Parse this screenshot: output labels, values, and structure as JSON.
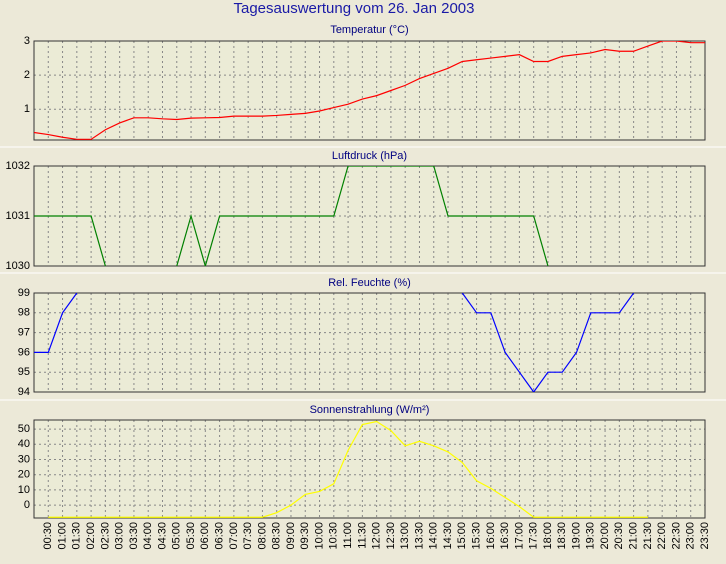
{
  "title": "Tagesauswertung vom 26. Jan 2003",
  "chart_data": [
    {
      "type": "line",
      "title": "Temperatur (°C)",
      "color": "#ff0000",
      "grid": true,
      "ylim": [
        0.1,
        3
      ],
      "yticks": [
        1,
        2,
        3
      ],
      "values": [
        0.32,
        0.26,
        0.18,
        0.12,
        0.12,
        0.4,
        0.6,
        0.75,
        0.75,
        0.72,
        0.7,
        0.74,
        0.75,
        0.76,
        0.8,
        0.8,
        0.8,
        0.82,
        0.85,
        0.88,
        0.95,
        1.05,
        1.15,
        1.3,
        1.4,
        1.55,
        1.7,
        1.9,
        2.05,
        2.2,
        2.4,
        2.45,
        2.5,
        2.55,
        2.6,
        2.4,
        2.4,
        2.55,
        2.6,
        2.65,
        2.75,
        2.7,
        2.7,
        2.85,
        3.0,
        3.0,
        2.95,
        2.95
      ]
    },
    {
      "type": "line",
      "title": "Luftdruck (hPa)",
      "color": "#008000",
      "grid": true,
      "ylim": [
        1030,
        1032
      ],
      "yticks": [
        1030,
        1031,
        1032
      ],
      "values": [
        1031,
        1031,
        1031,
        1031,
        1031,
        1030,
        null,
        null,
        null,
        null,
        1030,
        1031,
        1030,
        1031,
        1031,
        1031,
        1031,
        1031,
        1031,
        1031,
        1031,
        1031,
        1032,
        1032,
        1032,
        1032,
        1032,
        1032,
        1032,
        1031,
        1031,
        1031,
        1031,
        1031,
        1031,
        1031,
        1030,
        null,
        null,
        null,
        null,
        null,
        null,
        null,
        null,
        null,
        null,
        null
      ]
    },
    {
      "type": "line",
      "title": "Rel. Feuchte (%)",
      "color": "#0000ff",
      "grid": true,
      "ylim": [
        94,
        99
      ],
      "yticks": [
        94,
        95,
        96,
        97,
        98,
        99
      ],
      "values": [
        96,
        96,
        98,
        99,
        null,
        null,
        null,
        null,
        null,
        null,
        null,
        null,
        null,
        null,
        null,
        null,
        null,
        null,
        null,
        null,
        null,
        null,
        null,
        null,
        null,
        null,
        null,
        null,
        null,
        null,
        99,
        98,
        98,
        96,
        95,
        94,
        95,
        95,
        96,
        98,
        98,
        98,
        99,
        null,
        null,
        null,
        null,
        null
      ]
    },
    {
      "type": "line",
      "title": "Sonnenstrahlung (W/m²)",
      "color": "#ffff00",
      "grid": true,
      "ylim": [
        -8.5,
        56
      ],
      "yticks": [
        0,
        10,
        20,
        30,
        40,
        50
      ],
      "categories": [
        null,
        "00:30",
        "01:00",
        "01:30",
        "02:00",
        "02:30",
        "03:00",
        "03:30",
        "04:00",
        "04:30",
        "05:00",
        "05:30",
        "06:00",
        "06:30",
        "07:00",
        "07:30",
        "08:00",
        "08:30",
        "09:00",
        "09:30",
        "10:00",
        "10:30",
        "11:00",
        "11:30",
        "12:00",
        "12:30",
        "13:00",
        "13:30",
        "14:00",
        "14:30",
        "15:00",
        "15:30",
        "16:00",
        "16:30",
        "17:00",
        "17:30",
        "18:00",
        "18:30",
        "19:00",
        "19:30",
        "20:00",
        "20:30",
        "21:00",
        "21:30",
        "22:00",
        "22:30",
        "23:00",
        "23:30"
      ],
      "values": [
        null,
        -8,
        -8,
        -8,
        -8,
        -8,
        -8,
        -8,
        -8,
        -8,
        -8,
        -8,
        -8,
        -8,
        -8,
        -8,
        -8,
        -5,
        0,
        7,
        9,
        14,
        36,
        53,
        55,
        49,
        39,
        42,
        39,
        35,
        28,
        16,
        11,
        5,
        -1,
        -8,
        -8,
        -8,
        -8,
        -8,
        -8,
        -8,
        -8,
        -8,
        null,
        null,
        null,
        null
      ]
    }
  ]
}
